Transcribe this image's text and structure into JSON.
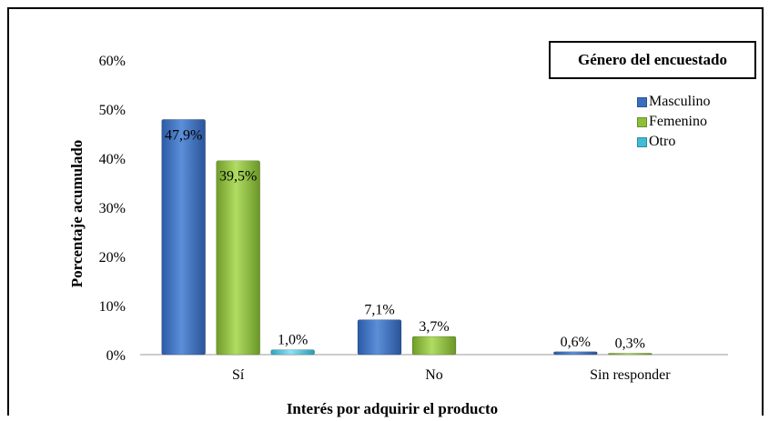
{
  "chart_data": {
    "type": "bar",
    "xlabel": "Interés por adquirir el producto",
    "ylabel": "Porcentaje acumulado",
    "ylim": [
      0,
      60
    ],
    "yticks": [
      "0%",
      "10%",
      "20%",
      "30%",
      "40%",
      "50%",
      "60%"
    ],
    "categories": [
      "Sí",
      "No",
      "Sin responder"
    ],
    "legend_title": "Género del encuestado",
    "legend_position": "top-right",
    "grid": false,
    "series": [
      {
        "name": "Masculino",
        "color": "#3a6fbf",
        "values": [
          47.9,
          7.1,
          0.6
        ],
        "labels": [
          "47,9%",
          "7,1%",
          "0,6%"
        ]
      },
      {
        "name": "Femenino",
        "color": "#8cbf3a",
        "values": [
          39.5,
          3.7,
          0.3
        ],
        "labels": [
          "39,5%",
          "3,7%",
          "0,3%"
        ]
      },
      {
        "name": "Otro",
        "color": "#3fbcd6",
        "values": [
          1.0,
          0,
          0
        ],
        "labels": [
          "1,0%",
          "",
          ""
        ]
      }
    ]
  }
}
